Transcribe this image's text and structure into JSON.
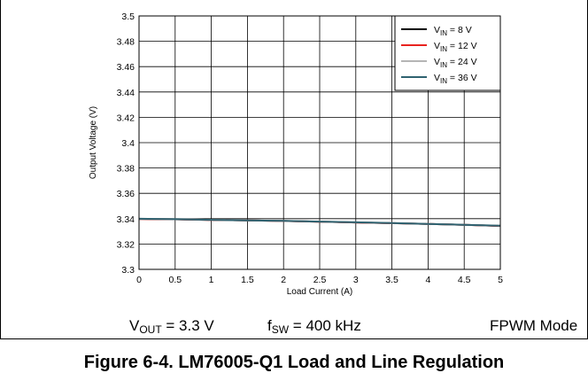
{
  "chart_data": {
    "type": "line",
    "title": "",
    "xlabel": "Load Current (A)",
    "ylabel": "Output Voltage (V)",
    "xlim": [
      0,
      5
    ],
    "ylim": [
      3.3,
      3.5
    ],
    "xticks": [
      0,
      0.5,
      1,
      1.5,
      2,
      2.5,
      3,
      3.5,
      4,
      4.5,
      5
    ],
    "yticks": [
      3.3,
      3.32,
      3.34,
      3.36,
      3.38,
      3.4,
      3.42,
      3.44,
      3.46,
      3.48,
      3.5
    ],
    "grid": true,
    "legend_position": "top-right",
    "x": [
      0,
      0.5,
      1,
      1.5,
      2,
      2.5,
      3,
      3.5,
      4,
      4.5,
      5
    ],
    "series": [
      {
        "name": "V_IN = 8 V",
        "name_main": "V",
        "name_sub": "IN",
        "name_rest": " = 8 V",
        "color": "#000000",
        "values": [
          3.3398,
          3.3395,
          3.339,
          3.3386,
          3.3382,
          3.3376,
          3.337,
          3.3364,
          3.3358,
          3.3351,
          3.3343
        ]
      },
      {
        "name": "V_IN = 12 V",
        "name_main": "V",
        "name_sub": "IN",
        "name_rest": " = 12 V",
        "color": "#e8231f",
        "values": [
          3.3398,
          3.3395,
          3.339,
          3.3386,
          3.3382,
          3.3376,
          3.337,
          3.3364,
          3.3358,
          3.3351,
          3.3343
        ]
      },
      {
        "name": "V_IN = 24 V",
        "name_main": "V",
        "name_sub": "IN",
        "name_rest": " = 24 V",
        "color": "#b5b5b5",
        "values": [
          3.3399,
          3.3396,
          3.3391,
          3.3387,
          3.3383,
          3.3377,
          3.3371,
          3.3365,
          3.3359,
          3.3352,
          3.3344
        ]
      },
      {
        "name": "V_IN = 36 V",
        "name_main": "V",
        "name_sub": "IN",
        "name_rest": " = 36 V",
        "color": "#2f6270",
        "values": [
          3.3399,
          3.3396,
          3.3391,
          3.3387,
          3.3383,
          3.3377,
          3.3371,
          3.3365,
          3.3359,
          3.3352,
          3.3344
        ]
      }
    ]
  },
  "conditions": {
    "vout_main": "V",
    "vout_sub": "OUT",
    "vout_rest": " = 3.3 V",
    "fsw_main": "f",
    "fsw_sub": "SW",
    "fsw_rest": " = 400 kHz",
    "mode": "FPWM Mode"
  },
  "caption": "Figure 6-4. LM76005-Q1 Load and Line Regulation"
}
